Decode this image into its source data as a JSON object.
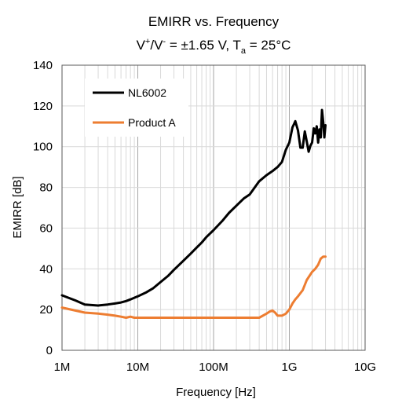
{
  "chart_data": {
    "type": "line",
    "title": "EMIRR vs. Frequency",
    "subtitle": {
      "v1": "V",
      "sup1": "+",
      "slash": "/V",
      "sup2": "-",
      "mid": " = ±1.65 V, T",
      "sub": "a",
      "tail": " = 25°C"
    },
    "xlabel": "Frequency [Hz]",
    "ylabel": "EMIRR [dB]",
    "xscale": "log",
    "xlim": [
      1000000,
      10000000000
    ],
    "ylim": [
      0,
      140
    ],
    "x_ticks": [
      {
        "value": 1000000,
        "label": "1M"
      },
      {
        "value": 10000000,
        "label": "10M"
      },
      {
        "value": 100000000,
        "label": "100M"
      },
      {
        "value": 1000000000,
        "label": "1G"
      },
      {
        "value": 10000000000,
        "label": "10G"
      }
    ],
    "y_ticks": [
      0,
      20,
      40,
      60,
      80,
      100,
      120,
      140
    ],
    "grid": true,
    "legend_position": "top-left",
    "series": [
      {
        "name": "NL6002",
        "color": "#000000",
        "x": [
          1000000,
          1500000,
          2000000,
          3000000,
          4000000,
          5000000,
          6000000,
          7000000,
          8000000,
          10000000,
          13000000,
          16000000,
          20000000,
          25000000,
          30000000,
          40000000,
          50000000,
          60000000,
          70000000,
          80000000,
          100000000,
          130000000,
          160000000,
          200000000,
          250000000,
          300000000,
          400000000,
          500000000,
          600000000,
          700000000,
          800000000,
          900000000,
          1000000000,
          1100000000,
          1150000000,
          1200000000,
          1300000000,
          1400000000,
          1500000000,
          1600000000,
          1700000000,
          1800000000,
          1900000000,
          2000000000,
          2100000000,
          2200000000,
          2300000000,
          2400000000,
          2500000000,
          2600000000,
          2700000000,
          2800000000,
          2900000000,
          3000000000
        ],
        "values": [
          27,
          24.5,
          22.5,
          22,
          22.5,
          23,
          23.5,
          24.2,
          25,
          26.5,
          28.5,
          30.5,
          33.5,
          36.5,
          39.5,
          44,
          47.5,
          50.5,
          53,
          55.5,
          59,
          63.5,
          67.5,
          71,
          74.5,
          76.5,
          83,
          86,
          88,
          90,
          92.5,
          98.5,
          102,
          109.5,
          111,
          112.5,
          108,
          99.5,
          99.5,
          107.5,
          102.5,
          97.5,
          100.5,
          102,
          109,
          106.5,
          110,
          102,
          108.5,
          104.5,
          118,
          112,
          104.5,
          110.5
        ]
      },
      {
        "name": "Product A",
        "color": "#ED7D31",
        "x": [
          1000000,
          1500000,
          2000000,
          3000000,
          4000000,
          5000000,
          6000000,
          7000000,
          8000000,
          9000000,
          10000000,
          12000000,
          15000000,
          20000000,
          30000000,
          50000000,
          100000000,
          200000000,
          300000000,
          400000000,
          500000000,
          550000000,
          600000000,
          650000000,
          700000000,
          800000000,
          900000000,
          1000000000,
          1100000000,
          1200000000,
          1300000000,
          1500000000,
          1700000000,
          2000000000,
          2200000000,
          2400000000,
          2600000000,
          2800000000,
          3000000000
        ],
        "values": [
          21,
          19.5,
          18.5,
          18,
          17.5,
          17,
          16.5,
          16,
          16.5,
          16,
          16,
          16,
          16,
          16,
          16,
          16,
          16,
          16,
          16,
          16,
          18,
          19,
          19.5,
          18.5,
          17,
          17,
          18,
          20,
          23,
          25,
          26.5,
          29.5,
          34.5,
          38.5,
          40,
          42,
          45,
          46,
          46
        ]
      }
    ]
  }
}
